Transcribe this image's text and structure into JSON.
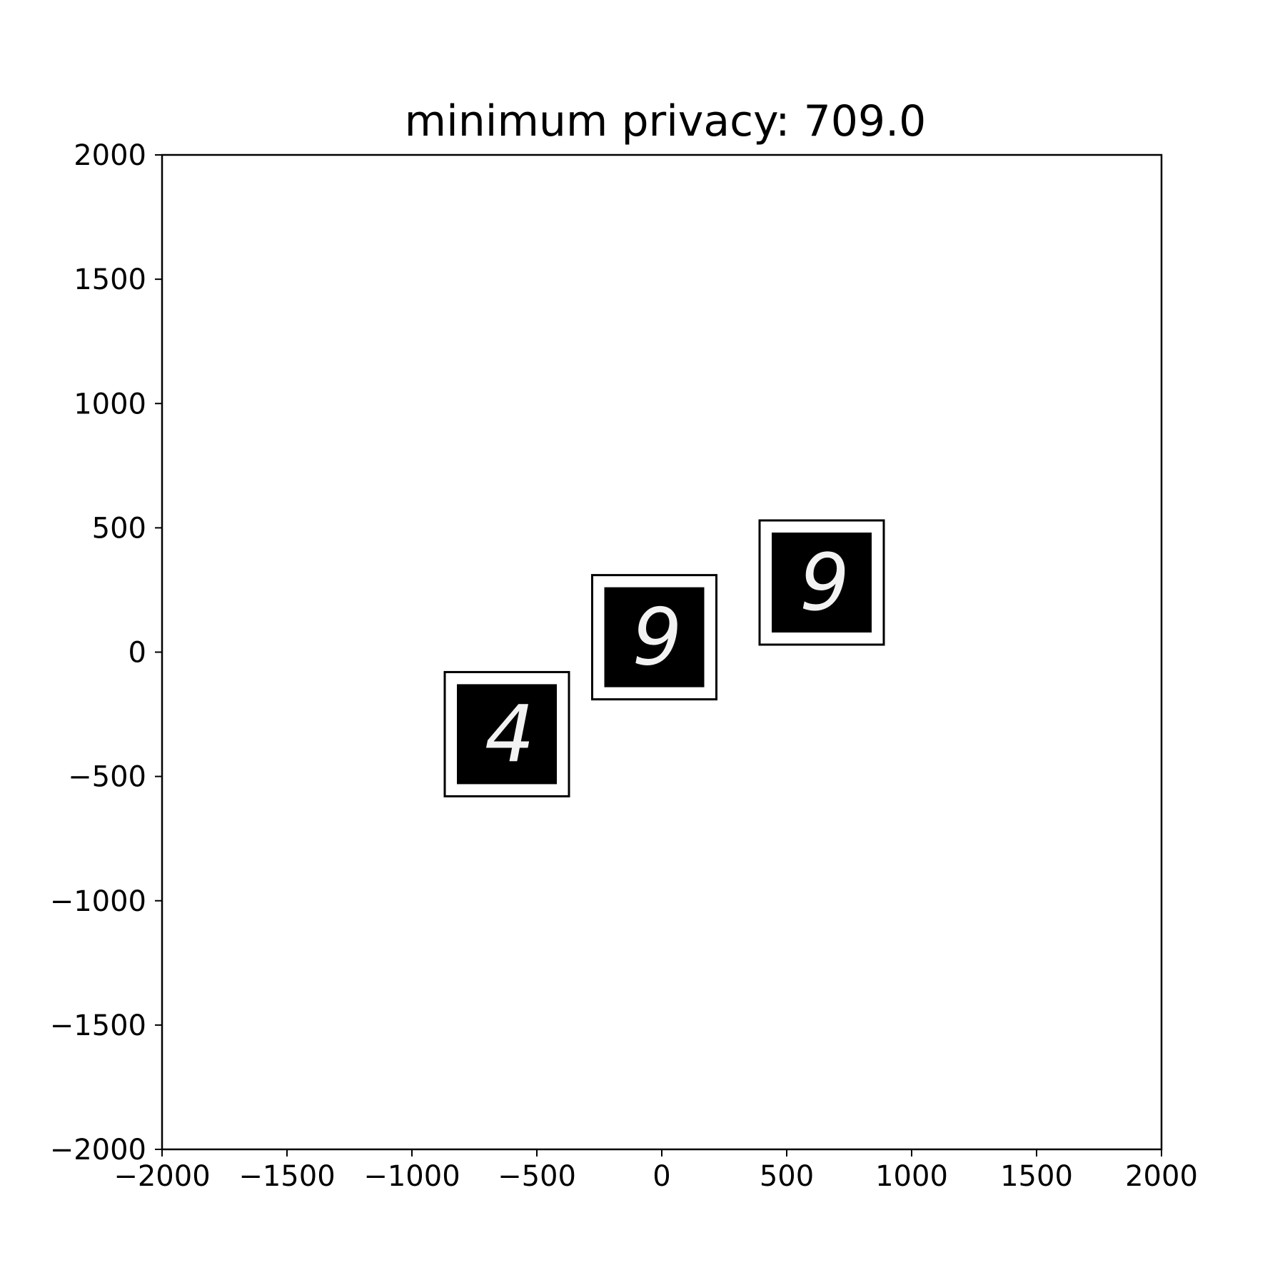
{
  "chart_data": {
    "type": "scatter",
    "title": "minimum privacy: 709.0",
    "xlabel": "",
    "ylabel": "",
    "xlim": [
      -2000,
      2000
    ],
    "ylim": [
      -2000,
      2000
    ],
    "xticks": [
      -2000,
      -1500,
      -1000,
      -500,
      0,
      500,
      1000,
      1500,
      2000
    ],
    "yticks": [
      -2000,
      -1500,
      -1000,
      -500,
      0,
      500,
      1000,
      1500,
      2000
    ],
    "grid": false,
    "points": [
      {
        "x": -620,
        "y": -330,
        "image_label": "4"
      },
      {
        "x": -30,
        "y": 60,
        "image_label": "9"
      },
      {
        "x": 640,
        "y": 280,
        "image_label": "9"
      }
    ],
    "colors": {
      "frame": "#000000",
      "image_bg": "#000000",
      "digit": "#f2f2f2"
    }
  }
}
